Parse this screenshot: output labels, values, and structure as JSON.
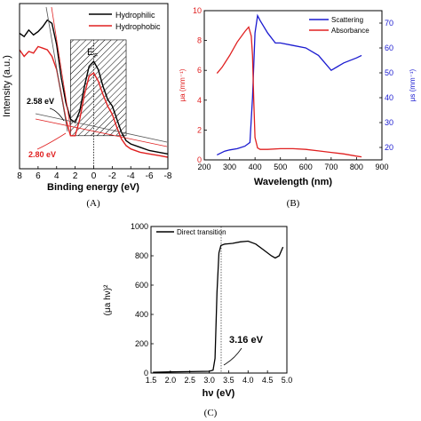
{
  "chart_data": [
    {
      "type": "line",
      "panel_label": "(A)",
      "xlabel": "Binding energy (eV)",
      "ylabel": "Intensity (a.u.)",
      "xlim": [
        8,
        -8
      ],
      "x_ticks": [
        "8",
        "6",
        "4",
        "2",
        "0",
        "-2",
        "-4",
        "-6",
        "-8"
      ],
      "legend": "top-right",
      "grid": false,
      "series": [
        {
          "name": "Hydrophilic",
          "color": "#000000",
          "x": [
            8,
            7.5,
            7,
            6.5,
            6,
            5.5,
            5,
            4.5,
            4,
            3.5,
            3,
            2.5,
            2,
            1.5,
            1,
            0.5,
            0,
            -0.5,
            -1,
            -1.5,
            -2,
            -2.5,
            -3,
            -3.5,
            -4,
            -5,
            -6,
            -7,
            -8
          ],
          "y": [
            0.82,
            0.8,
            0.84,
            0.81,
            0.83,
            0.86,
            0.9,
            0.88,
            0.75,
            0.55,
            0.4,
            0.3,
            0.28,
            0.35,
            0.5,
            0.62,
            0.65,
            0.6,
            0.5,
            0.42,
            0.38,
            0.3,
            0.22,
            0.17,
            0.15,
            0.13,
            0.11,
            0.1,
            0.09
          ]
        },
        {
          "name": "Hydrophobic",
          "color": "#e02020",
          "x": [
            8,
            7.5,
            7,
            6.5,
            6,
            5.5,
            5,
            4.5,
            4,
            3.5,
            3,
            2.5,
            2,
            1.5,
            1,
            0.5,
            0,
            -0.5,
            -1,
            -1.5,
            -2,
            -2.5,
            -3,
            -3.5,
            -4,
            -5,
            -6,
            -7,
            -8
          ],
          "y": [
            0.72,
            0.68,
            0.71,
            0.7,
            0.74,
            0.73,
            0.72,
            0.68,
            0.6,
            0.45,
            0.3,
            0.2,
            0.2,
            0.3,
            0.45,
            0.56,
            0.58,
            0.53,
            0.45,
            0.38,
            0.33,
            0.25,
            0.18,
            0.14,
            0.12,
            0.1,
            0.09,
            0.08,
            0.07
          ]
        }
      ],
      "annotations": [
        "E_F",
        "2.58 eV",
        "2.80 eV"
      ],
      "fermi_label": "E",
      "fermi_sub": "F",
      "ann_black": "2.58 eV",
      "ann_red": "2.80 eV",
      "hatched_region_x": [
        2.5,
        -3.5
      ]
    },
    {
      "type": "line",
      "panel_label": "(B)",
      "xlabel": "Wavelength (nm)",
      "ylabel_left": "μa (mm⁻¹)",
      "ylabel_right": "μs (mm⁻¹)",
      "xlim": [
        200,
        900
      ],
      "x_ticks": [
        "200",
        "300",
        "400",
        "500",
        "600",
        "700",
        "800",
        "900"
      ],
      "ylim_left": [
        0,
        10
      ],
      "y_ticks_left": [
        "0",
        "2",
        "4",
        "6",
        "8",
        "10"
      ],
      "ylim_right": [
        15,
        75
      ],
      "y_ticks_right": [
        "20",
        "30",
        "40",
        "50",
        "60",
        "70"
      ],
      "legend": "top-right",
      "grid": false,
      "series": [
        {
          "name": "Scattering",
          "axis": "right",
          "color": "#1a1ad0",
          "x": [
            250,
            280,
            300,
            330,
            360,
            380,
            390,
            400,
            410,
            420,
            450,
            480,
            500,
            550,
            600,
            650,
            700,
            750,
            800,
            820
          ],
          "y": [
            17,
            18.5,
            19,
            19.5,
            20.5,
            22,
            40,
            66,
            73,
            71,
            66,
            62,
            62,
            61,
            60,
            57,
            51,
            54,
            56,
            57
          ]
        },
        {
          "name": "Absorbance",
          "axis": "left",
          "color": "#e02020",
          "x": [
            250,
            270,
            300,
            330,
            360,
            375,
            385,
            390,
            395,
            400,
            410,
            420,
            450,
            500,
            550,
            600,
            650,
            700,
            750,
            800,
            820
          ],
          "y": [
            5.8,
            6.2,
            7.0,
            7.9,
            8.6,
            8.9,
            8.3,
            7.0,
            4.0,
            1.5,
            0.8,
            0.7,
            0.7,
            0.75,
            0.75,
            0.7,
            0.6,
            0.5,
            0.4,
            0.25,
            0.2
          ]
        }
      ]
    },
    {
      "type": "line",
      "panel_label": "(C)",
      "xlabel": "hν (eV)",
      "ylabel": "(μa hν)²",
      "xlim": [
        1.5,
        5.0
      ],
      "x_ticks": [
        "1.5",
        "2.0",
        "2.5",
        "3.0",
        "3.5",
        "4.0",
        "4.5",
        "5.0"
      ],
      "ylim": [
        0,
        1000
      ],
      "y_ticks": [
        "0",
        "200",
        "400",
        "600",
        "800",
        "1000"
      ],
      "legend": "top-left",
      "grid": false,
      "series": [
        {
          "name": "Direct transition",
          "color": "#000000",
          "x": [
            1.55,
            2.0,
            2.5,
            3.0,
            3.1,
            3.15,
            3.2,
            3.25,
            3.3,
            3.4,
            3.6,
            3.8,
            4.0,
            4.2,
            4.4,
            4.6,
            4.7,
            4.8,
            4.9
          ],
          "y": [
            5,
            8,
            10,
            12,
            20,
            100,
            550,
            820,
            870,
            880,
            885,
            895,
            900,
            880,
            840,
            800,
            785,
            800,
            860
          ]
        }
      ],
      "annotations": [
        "3.16 eV"
      ],
      "ann_bandgap": "3.16 eV"
    }
  ]
}
